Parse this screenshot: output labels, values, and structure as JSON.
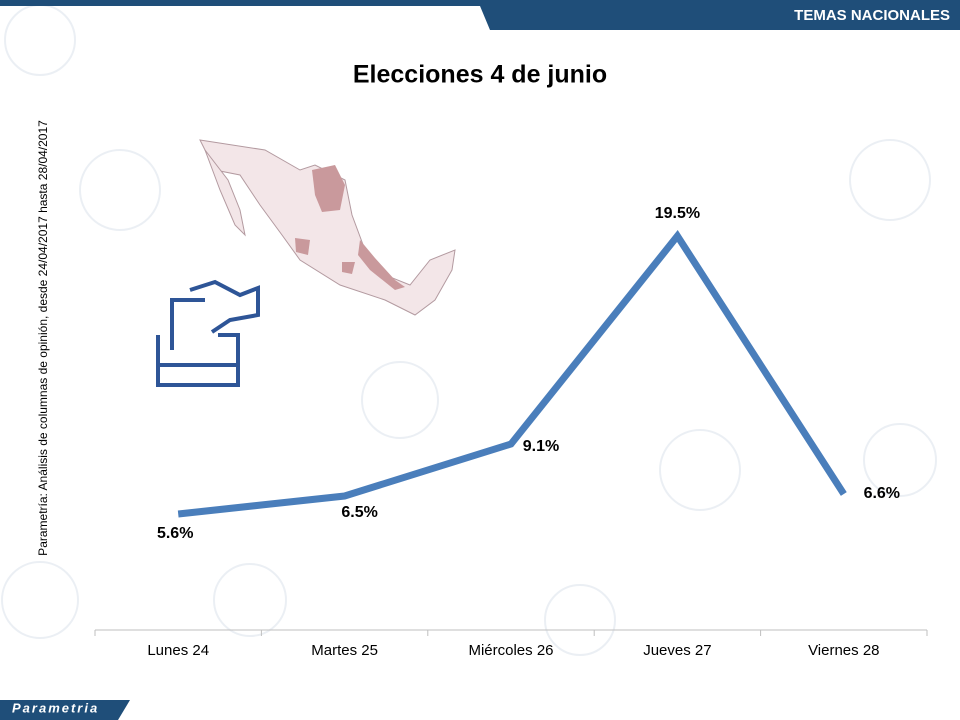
{
  "header": "TEMAS NACIONALES",
  "source": "Parametría: Análisis de columnas de opinión, desde 24/04/2017 hasta 28/04/2017",
  "brand": "Parametria",
  "chart_data": {
    "type": "line",
    "title": "Elecciones 4 de junio",
    "categories": [
      "Lunes 24",
      "Martes 25",
      "Miércoles 26",
      "Jueves 27",
      "Viernes 28"
    ],
    "values": [
      5.6,
      6.5,
      9.1,
      19.5,
      6.6
    ],
    "value_labels": [
      "5.6%",
      "6.5%",
      "9.1%",
      "19.5%",
      "6.6%"
    ],
    "color": "#4a7ebb"
  }
}
